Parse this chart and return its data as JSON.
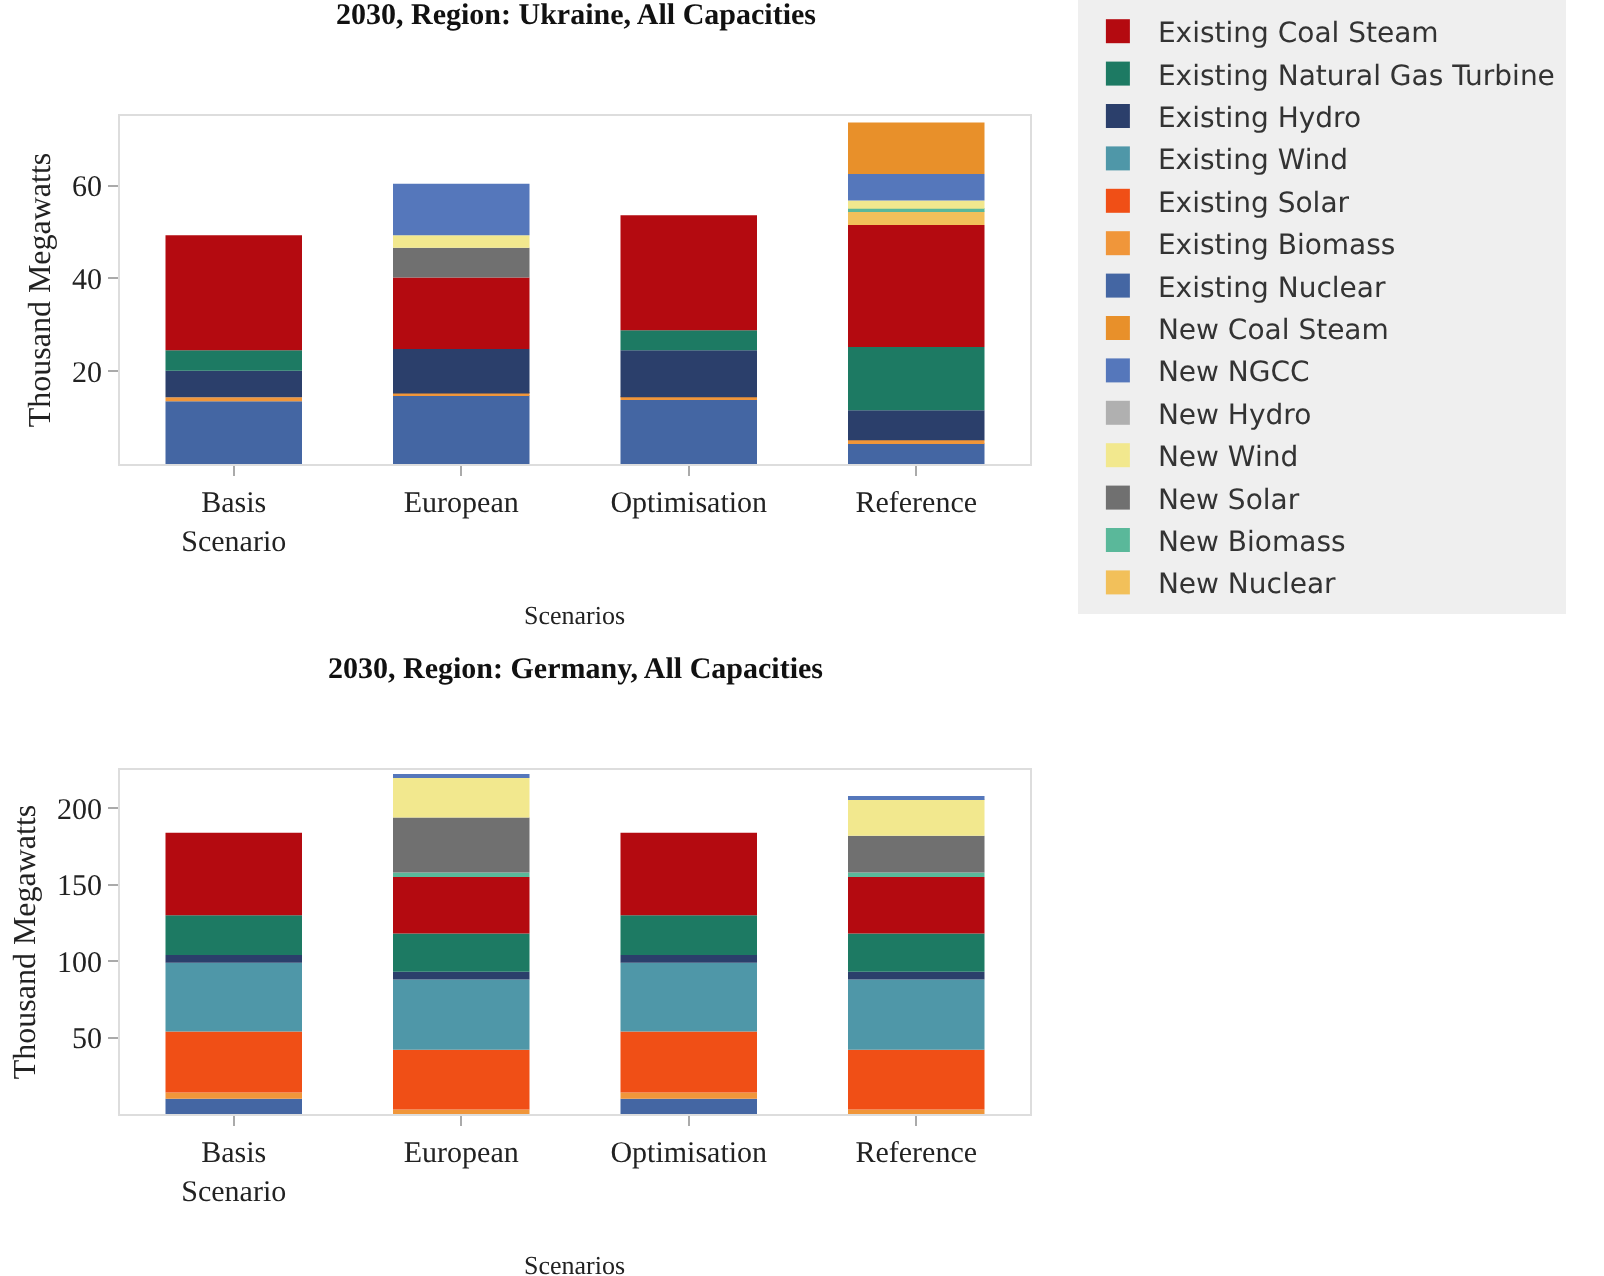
{
  "chart_data": [
    {
      "type": "bar",
      "stacked": true,
      "title": "2030, Region: Ukraine, All Capacities",
      "xlabel": "Scenarios",
      "ylabel": "Thousand Megawatts",
      "categories": [
        "Basis Scenario",
        "European",
        "Optimisation",
        "Reference"
      ],
      "ylim": [
        0,
        75
      ],
      "yticks": [
        20,
        40,
        60
      ],
      "grid": false,
      "legend": "right",
      "series": [
        {
          "name": "Existing Nuclear",
          "color": "#4466a3",
          "values": [
            13.5,
            14.8,
            13.8,
            4.4
          ]
        },
        {
          "name": "Existing Biomass",
          "color": "#f0963a",
          "values": [
            0.9,
            0.4,
            0.6,
            0.7
          ]
        },
        {
          "name": "Existing Solar",
          "color": "#f04f16",
          "values": [
            null,
            null,
            null,
            null
          ]
        },
        {
          "name": "Existing Wind",
          "color": "#4f97a8",
          "values": [
            null,
            null,
            null,
            null
          ]
        },
        {
          "name": "Existing Hydro",
          "color": "#2b3f6b",
          "values": [
            5.7,
            9.6,
            10.1,
            6.5
          ]
        },
        {
          "name": "Existing Natural Gas Turbine",
          "color": "#1d7a63",
          "values": [
            4.4,
            null,
            4.3,
            13.6
          ]
        },
        {
          "name": "Existing Coal Steam",
          "color": "#b40a10",
          "values": [
            24.8,
            15.4,
            24.8,
            26.3
          ]
        },
        {
          "name": "New Nuclear",
          "color": "#f2c05a",
          "values": [
            null,
            null,
            null,
            2.9
          ]
        },
        {
          "name": "New Biomass",
          "color": "#5ab89a",
          "values": [
            null,
            null,
            null,
            0.6
          ]
        },
        {
          "name": "New Solar",
          "color": "#707070",
          "values": [
            null,
            6.4,
            null,
            null
          ]
        },
        {
          "name": "New Wind",
          "color": "#f2e88e",
          "values": [
            null,
            2.7,
            null,
            1.8
          ]
        },
        {
          "name": "New Hydro",
          "color": "#b0b0b0",
          "values": [
            null,
            null,
            null,
            null
          ]
        },
        {
          "name": "New NGCC",
          "color": "#5577bb",
          "values": [
            null,
            11.1,
            null,
            5.7
          ]
        },
        {
          "name": "New Coal Steam",
          "color": "#e8902a",
          "values": [
            null,
            null,
            null,
            11.1
          ]
        }
      ]
    },
    {
      "type": "bar",
      "stacked": true,
      "title": "2030, Region: Germany, All Capacities",
      "xlabel": "Scenarios",
      "ylabel": "Thousand Megawatts",
      "categories": [
        "Basis Scenario",
        "European",
        "Optimisation",
        "Reference"
      ],
      "ylim": [
        0,
        225
      ],
      "yticks": [
        50,
        100,
        150,
        200
      ],
      "grid": false,
      "series": [
        {
          "color": "#4466a3",
          "values": [
            10,
            null,
            10,
            null
          ]
        },
        {
          "color": "#f0963a",
          "values": [
            4,
            3,
            4,
            3
          ]
        },
        {
          "color": "#f04f16",
          "values": [
            40,
            39,
            40,
            39
          ]
        },
        {
          "color": "#4f97a8",
          "values": [
            45,
            46,
            45,
            46
          ]
        },
        {
          "color": "#2b3f6b",
          "values": [
            5,
            5,
            5,
            5
          ]
        },
        {
          "color": "#1d7a63",
          "values": [
            26,
            25,
            26,
            25
          ]
        },
        {
          "color": "#b40a10",
          "values": [
            54,
            37,
            54,
            37
          ]
        },
        {
          "color": "#5ab89a",
          "values": [
            null,
            3,
            null,
            3
          ]
        },
        {
          "color": "#707070",
          "values": [
            null,
            36,
            null,
            24
          ]
        },
        {
          "color": "#f2e88e",
          "values": [
            null,
            26,
            null,
            24
          ]
        },
        {
          "color": "#5577bb",
          "values": [
            null,
            2,
            null,
            2
          ]
        }
      ]
    }
  ]
}
